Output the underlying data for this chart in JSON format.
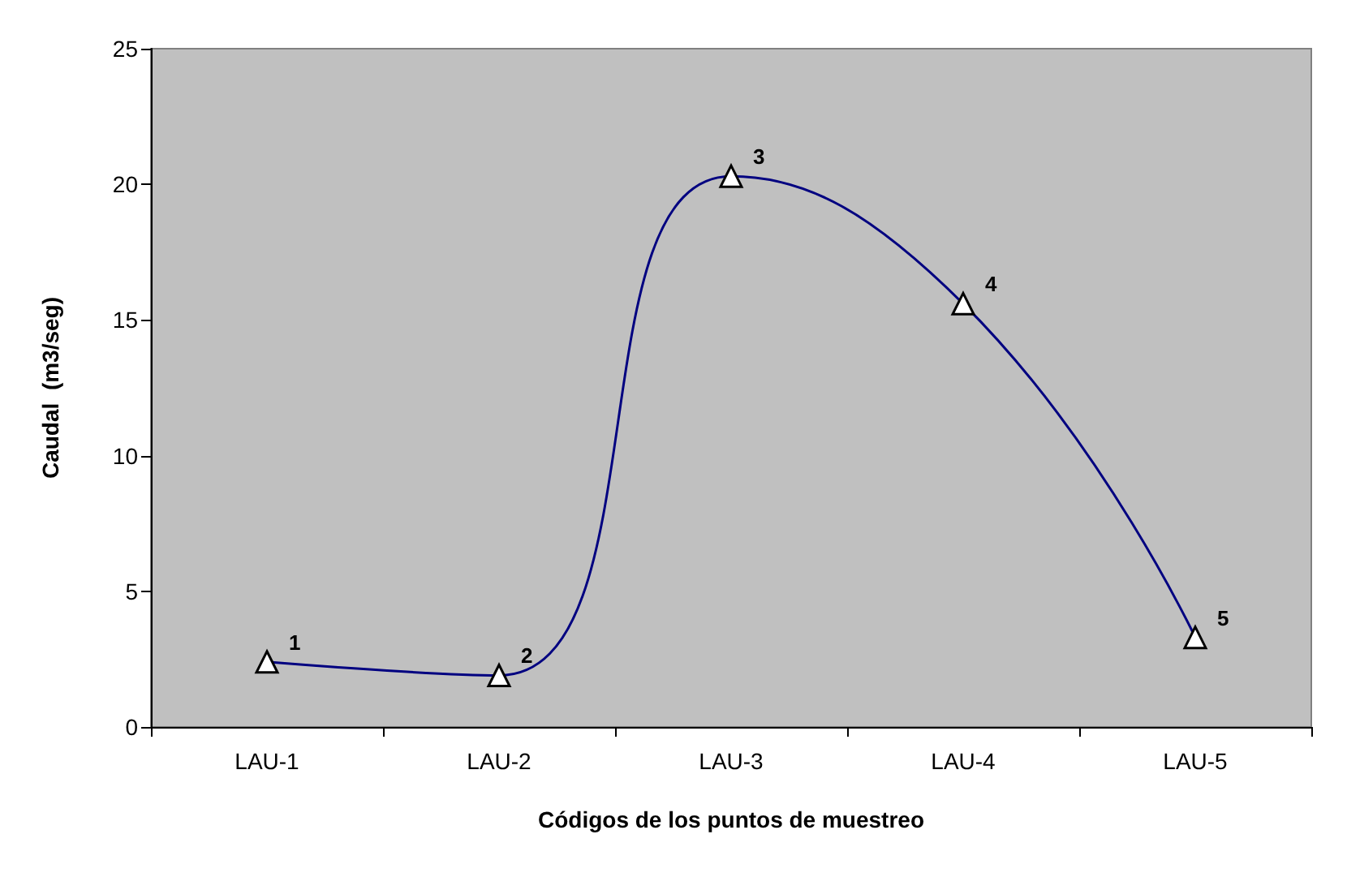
{
  "chart_data": {
    "type": "line",
    "xlabel": "Códigos de los puntos de muestreo",
    "ylabel": "Caudal  (m3/seg)",
    "categories": [
      "LAU-1",
      "LAU-2",
      "LAU-3",
      "LAU-4",
      "LAU-5"
    ],
    "series": [
      {
        "color": "#000080",
        "values": [
          2.4,
          1.9,
          20.3,
          15.6,
          3.3
        ]
      }
    ],
    "ylim": [
      0,
      25
    ],
    "yticks": [
      0,
      5,
      10,
      15,
      20,
      25
    ],
    "grid": false,
    "marker": "triangle",
    "line_style": "solid",
    "annotations": [
      {
        "text": "1",
        "x": "LAU-1",
        "y": 2.4
      },
      {
        "text": "2",
        "x": "LAU-2",
        "y": 1.9
      },
      {
        "text": "3",
        "x": "LAU-3",
        "y": 20.3
      },
      {
        "text": "4",
        "x": "LAU-4",
        "y": 15.6
      },
      {
        "text": "5",
        "x": "LAU-5",
        "y": 3.3
      }
    ]
  }
}
